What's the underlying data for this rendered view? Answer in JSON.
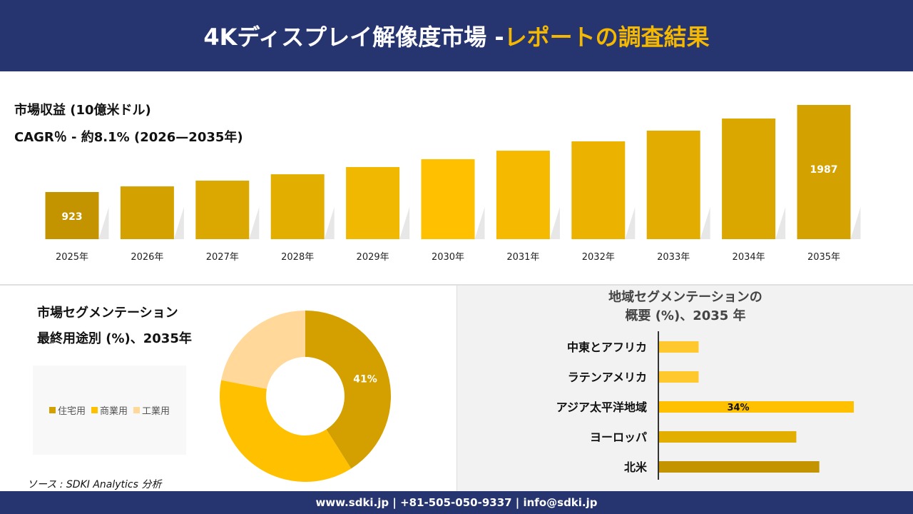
{
  "header": {
    "title_main": "4Kディスプレイ解像度市場 -",
    "title_accent": "レポートの調査結果"
  },
  "colors": {
    "navy": "#263470",
    "accent": "#F5B800"
  },
  "revenue": {
    "title": "市場収益 (10億米ドル)",
    "cagr": "CAGR％ - 約8.1% (2026—2035年)"
  },
  "segment": {
    "title_line1": "市場セグメンテーション",
    "title_line2": "最終用途別 (%)、2035年"
  },
  "region": {
    "title_line1": "地域セグメンテーションの",
    "title_line2": "概要 (%)、2035 年"
  },
  "source": "ソース : SDKI Analytics 分析",
  "footer": "www.sdki.jp | +81-505-050-9337 | info@sdki.jp",
  "chart_data": [
    {
      "type": "bar",
      "title": "市場収益 (10億米ドル)",
      "categories": [
        "2025年",
        "2026年",
        "2027年",
        "2028年",
        "2029年",
        "2030年",
        "2031年",
        "2032年",
        "2033年",
        "2034年",
        "2035年"
      ],
      "values": [
        923,
        992,
        1062,
        1140,
        1228,
        1324,
        1428,
        1542,
        1673,
        1821,
        1987
      ],
      "data_labels": {
        "0": "923",
        "10": "1987"
      },
      "colors": [
        "#C49400",
        "#D4A200",
        "#DAA800",
        "#E2AE00",
        "#F0B800",
        "#FFC000",
        "#F5BA00",
        "#EBB300",
        "#E2AD00",
        "#D9A700",
        "#D4A200"
      ],
      "ylim": [
        347,
        2000
      ],
      "grid": false
    },
    {
      "type": "pie",
      "title": "最終用途別 (%)、2035年",
      "categories": [
        "住宅用",
        "商業用",
        "工業用"
      ],
      "values": [
        41,
        37,
        22
      ],
      "data_labels": {
        "0": "41%"
      },
      "colors": [
        "#D4A000",
        "#FFC000",
        "#FFD89A"
      ],
      "legend": "left"
    },
    {
      "type": "bar",
      "orientation": "horizontal",
      "title": "地域セグメンテーションの概要 (%)、2035 年",
      "categories": [
        "中東とアフリカ",
        "ラテンアメリカ",
        "アジア太平洋地域",
        "ヨーロッパ",
        "北米"
      ],
      "values": [
        7,
        7,
        34,
        24,
        28
      ],
      "data_labels": {
        "2": "34%"
      },
      "colors": [
        "#FFC82C",
        "#FFC82C",
        "#FFC000",
        "#E2AE00",
        "#C49400"
      ]
    }
  ]
}
